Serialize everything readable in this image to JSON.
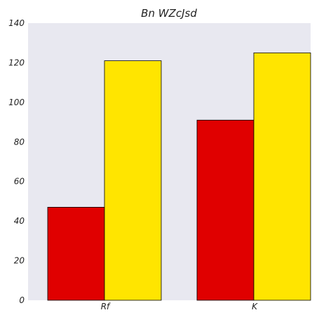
{
  "chart_data": {
    "type": "bar",
    "title": "Bn WZcJsd",
    "xlabel": "",
    "ylabel": "",
    "categories": [
      "Rf",
      "K"
    ],
    "series": [
      {
        "values": [
          47,
          91
        ],
        "color": "#e00000"
      },
      {
        "values": [
          121,
          125
        ],
        "color": "#ffe500"
      }
    ],
    "ylim": [
      0,
      140
    ],
    "yticks": [
      0,
      20,
      40,
      60,
      80,
      100,
      120,
      140
    ],
    "grid": false,
    "plot_background": "#e8e8f0"
  }
}
